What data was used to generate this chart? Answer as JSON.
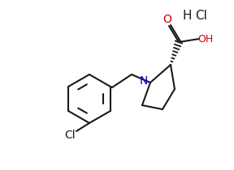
{
  "background_color": "#ffffff",
  "line_color": "#1a1a1a",
  "text_color": "#1a1a1a",
  "atom_colors": {
    "N": "#0000cc",
    "O": "#cc0000",
    "Cl": "#1a1a1a",
    "H": "#1a1a1a"
  },
  "line_width": 1.5,
  "font_size": 9,
  "hcl_text": "HCl",
  "h_text": "H",
  "cl_label": "Cl",
  "n_label": "N",
  "o_label": "O",
  "oh_label": "OH"
}
